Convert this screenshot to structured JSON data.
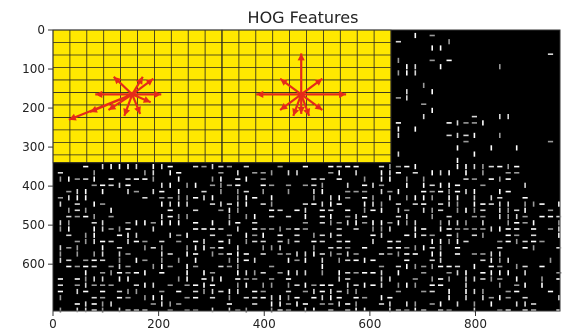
{
  "chart_data": {
    "type": "heatmap",
    "title": "HOG Features",
    "xlabel": "",
    "ylabel": "",
    "xlim": [
      0,
      960
    ],
    "ylim": [
      0,
      720
    ],
    "x_ticks": [
      0,
      200,
      400,
      600,
      800
    ],
    "y_ticks": [
      0,
      100,
      200,
      300,
      400,
      500,
      600
    ],
    "x_tick_labels": [
      "0",
      "200",
      "400",
      "600",
      "800"
    ],
    "y_tick_labels": [
      "0",
      "100",
      "200",
      "300",
      "400",
      "500",
      "600"
    ],
    "grid": false,
    "overlay": {
      "cell_size": 32,
      "fill": "#ffe800",
      "grid_color": "#222222",
      "panels": [
        {
          "x": [
            0,
            320
          ],
          "y": [
            0,
            340
          ]
        },
        {
          "x": [
            320,
            640
          ],
          "y": [
            0,
            340
          ]
        }
      ],
      "arrow_color": "#e52a1a",
      "glyphs": [
        {
          "center": [
            150,
            165
          ],
          "vectors": [
            [
              -70,
              0
            ],
            [
              -120,
              65
            ],
            [
              -80,
              45
            ],
            [
              -35,
              -45
            ],
            [
              20,
              -45
            ],
            [
              15,
              50
            ],
            [
              40,
              -40
            ],
            [
              -45,
              40
            ],
            [
              -15,
              55
            ],
            [
              55,
              0
            ],
            [
              35,
              20
            ]
          ]
        },
        {
          "center": [
            470,
            165
          ],
          "vectors": [
            [
              0,
              -105
            ],
            [
              -85,
              0
            ],
            [
              85,
              0
            ],
            [
              -40,
              -40
            ],
            [
              40,
              -40
            ],
            [
              -40,
              40
            ],
            [
              40,
              40
            ],
            [
              -15,
              55
            ],
            [
              15,
              55
            ],
            [
              0,
              50
            ]
          ]
        }
      ]
    },
    "feature_field": {
      "colors": [
        "#ffffff",
        "#d8d8d8",
        "#9a9a9a"
      ],
      "background": "#000000"
    }
  }
}
